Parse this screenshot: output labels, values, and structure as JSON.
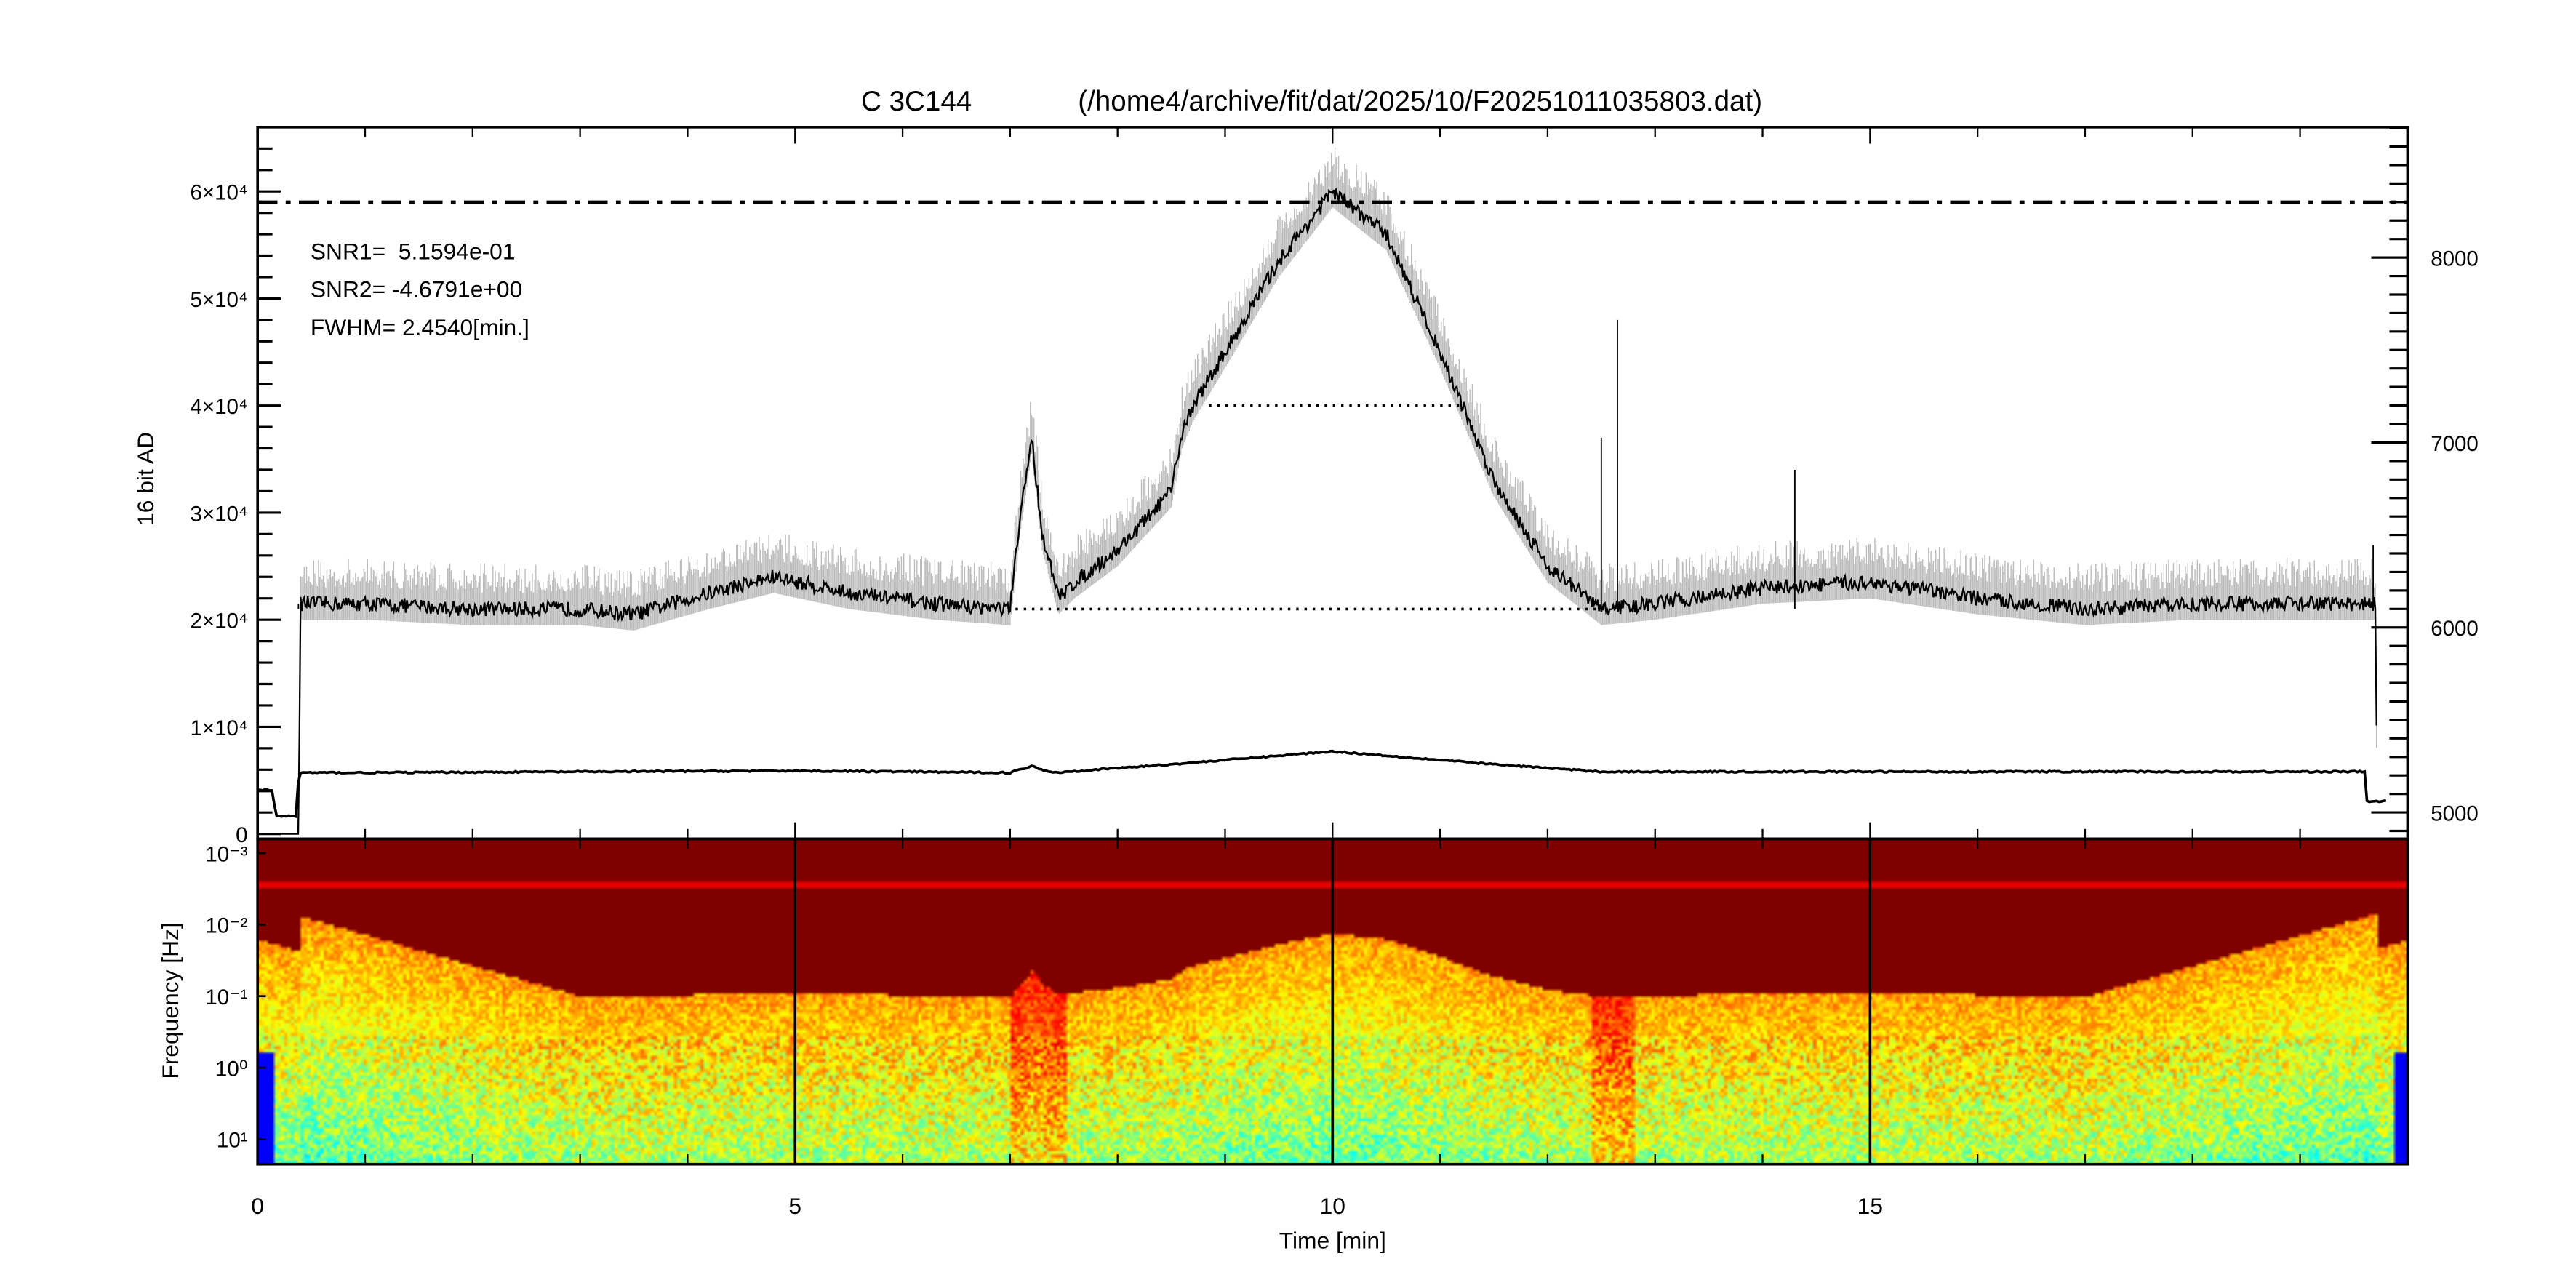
{
  "chart_data": [
    {
      "type": "line",
      "title": "C 3C144",
      "subtitle": "(/home4/archive/fit/dat/2025/10/F20251011035803.dat)",
      "xlabel": "",
      "ylabel": "16 bit AD",
      "xlim": [
        0,
        20
      ],
      "ylim_left": [
        -460,
        66000
      ],
      "ylim_right": [
        4857,
        8705
      ],
      "left_ticks": [
        "0",
        "1×10⁴",
        "2×10⁴",
        "3×10⁴",
        "4×10⁴",
        "5×10⁴",
        "6×10⁴"
      ],
      "left_tick_values": [
        0,
        10000,
        20000,
        30000,
        40000,
        50000,
        60000
      ],
      "right_ticks": [
        "5000",
        "6000",
        "7000",
        "8000"
      ],
      "right_tick_values": [
        5000,
        6000,
        7000,
        8000
      ],
      "annotations": [
        "SNR1=  5.1594e-01",
        "SNR2= -4.6791e+00",
        "FWHM= 2.4540[min.]"
      ],
      "series": [
        {
          "axis": "left",
          "color": "#000000",
          "x": [
            0,
            0.1,
            0.38,
            0.4,
            1,
            2,
            3,
            3.5,
            4.2,
            4.8,
            5.5,
            6.3,
            7.0,
            7.1,
            7.2,
            7.3,
            7.45,
            7.6,
            8.0,
            8.5,
            8.6,
            8.7,
            9.0,
            9.5,
            10.0,
            10.5,
            11.0,
            11.5,
            12.0,
            12.5,
            13.0,
            14.0,
            15.0,
            16.0,
            17.0,
            18.0,
            19.0,
            19.7,
            19.72
          ],
          "y": [
            0,
            0,
            0,
            21500,
            21500,
            21000,
            21000,
            20500,
            22500,
            24000,
            22500,
            21500,
            21000,
            30000,
            37000,
            28000,
            22000,
            23500,
            26500,
            32000,
            37500,
            40000,
            45000,
            53500,
            60000,
            56000,
            45000,
            33000,
            25000,
            21000,
            21500,
            23000,
            23500,
            22000,
            21000,
            21500,
            21500,
            21500,
            0
          ]
        },
        {
          "axis": "right",
          "color": "#000000",
          "x": [
            0,
            0.15,
            0.16,
            0.37,
            0.38,
            1,
            5,
            7,
            7.2,
            7.4,
            8.5,
            10,
            11.5,
            12.5,
            15,
            19.6,
            19.62,
            19.8,
            19.82
          ],
          "y": [
            5120,
            5120,
            4980,
            4980,
            5215,
            5215,
            5225,
            5215,
            5250,
            5215,
            5260,
            5330,
            5260,
            5220,
            5220,
            5220,
            5060,
            5060,
            4860
          ]
        }
      ],
      "reference_lines": [
        {
          "style": "dash-dot",
          "axis": "left",
          "y": 59000,
          "x": [
            0,
            20
          ]
        },
        {
          "style": "dotted",
          "axis": "left",
          "y": 40000,
          "x": [
            8.85,
            11.2
          ]
        },
        {
          "style": "dotted",
          "axis": "left",
          "y": 21000,
          "x": [
            7.05,
            12.55
          ]
        }
      ]
    },
    {
      "type": "heatmap",
      "xlabel": "Time [min]",
      "ylabel": "Frequency [Hz]",
      "xlim": [
        0,
        20
      ],
      "x_ticks": [
        "0",
        "5",
        "10",
        "15"
      ],
      "x_tick_values": [
        0,
        5,
        10,
        15
      ],
      "y_scale": "log",
      "y_ticks": [
        "10⁻³",
        "10⁻²",
        "10⁻¹",
        "10⁰",
        "10¹"
      ],
      "y_tick_values": [
        0.001,
        0.01,
        0.1,
        1,
        10
      ],
      "colormap": "jet",
      "vertical_markers": [
        5,
        10,
        15
      ]
    }
  ]
}
